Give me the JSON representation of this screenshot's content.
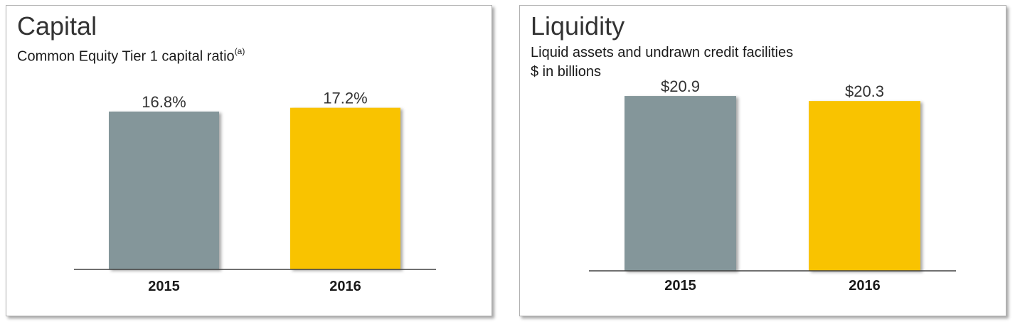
{
  "chart_data": [
    {
      "type": "bar",
      "title": "Capital",
      "subtitle": "Common Equity Tier 1 capital ratio",
      "subtitle_footnote": "(a)",
      "categories": [
        "2015",
        "2016"
      ],
      "values": [
        16.8,
        17.2
      ],
      "data_labels": [
        "16.8%",
        "17.2%"
      ],
      "colors": [
        "#84969a",
        "#f9c300"
      ],
      "ylim": [
        0,
        20.5
      ],
      "grid": false,
      "legend": "none"
    },
    {
      "type": "bar",
      "title": "Liquidity",
      "subtitle": "Liquid assets and undrawn credit facilities",
      "subtitle_2": "$ in billions",
      "categories": [
        "2015",
        "2016"
      ],
      "values": [
        20.9,
        20.3
      ],
      "data_labels": [
        "$20.9",
        "$20.3"
      ],
      "colors": [
        "#84969a",
        "#f9c300"
      ],
      "ylim": [
        0,
        23.2
      ],
      "grid": false,
      "legend": "none"
    }
  ]
}
